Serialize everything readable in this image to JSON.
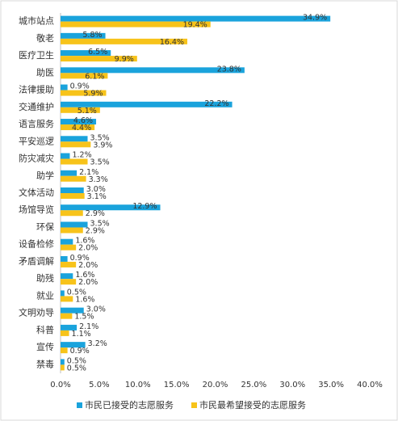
{
  "chart_data": {
    "type": "bar",
    "orientation": "horizontal",
    "categories": [
      "城市站点",
      "敬老",
      "医疗卫生",
      "助医",
      "法律援助",
      "交通维护",
      "语言服务",
      "平安巡逻",
      "防灾减灾",
      "助学",
      "文体活动",
      "场馆导览",
      "环保",
      "设备检修",
      "矛盾调解",
      "助残",
      "就业",
      "文明劝导",
      "科普",
      "宣传",
      "禁毒"
    ],
    "series": [
      {
        "name": "市民已接受的志愿服务",
        "color": "#1aa3dc",
        "values": [
          34.9,
          5.8,
          6.5,
          23.8,
          0.9,
          22.2,
          4.6,
          3.5,
          1.2,
          2.1,
          3.0,
          12.9,
          3.5,
          1.6,
          0.9,
          1.6,
          0.5,
          3.0,
          2.1,
          3.2,
          0.5
        ],
        "value_labels": [
          "34.9%",
          "5.8%",
          "6.5%",
          "23.8%",
          "0.9%",
          "22.2%",
          "4.6%",
          "3.5%",
          "1.2%",
          "2.1%",
          "3.0%",
          "12.9%",
          "3.5%",
          "1.6%",
          "0.9%",
          "1.6%",
          "0.5%",
          "3.0%",
          "2.1%",
          "3.2%",
          "0.5%"
        ]
      },
      {
        "name": "市民最希望接受的志愿服务",
        "color": "#f7c31a",
        "values": [
          19.4,
          16.4,
          9.9,
          6.1,
          5.9,
          5.1,
          4.4,
          3.9,
          3.5,
          3.3,
          3.1,
          2.9,
          2.9,
          2.0,
          2.0,
          2.0,
          1.6,
          1.5,
          1.1,
          0.9,
          0.5
        ],
        "value_labels": [
          "19.4%",
          "16.4%",
          "9.9%",
          "6.1%",
          "5.9%",
          "5.1%",
          "4.4%",
          "3.9%",
          "3.5%",
          "3.3%",
          "3.1%",
          "2.9%",
          "2.9%",
          "2.0%",
          "2.0%",
          "2.0%",
          "1.6%",
          "1.5%",
          "1.1%",
          "0.9%",
          "0.5%"
        ]
      }
    ],
    "xlim": [
      0,
      40
    ],
    "xticks": [
      {
        "value": 0,
        "label": "0.0%"
      },
      {
        "value": 5,
        "label": "5.0%"
      },
      {
        "value": 10,
        "label": "10.0%"
      },
      {
        "value": 15,
        "label": "15.0%"
      },
      {
        "value": 20,
        "label": "20.0%"
      },
      {
        "value": 25,
        "label": "25.0%"
      },
      {
        "value": 30,
        "label": "30.0%"
      },
      {
        "value": 35,
        "label": "35.0%"
      },
      {
        "value": 40,
        "label": "40.0%"
      }
    ],
    "grid": false,
    "legend": "bottom"
  }
}
